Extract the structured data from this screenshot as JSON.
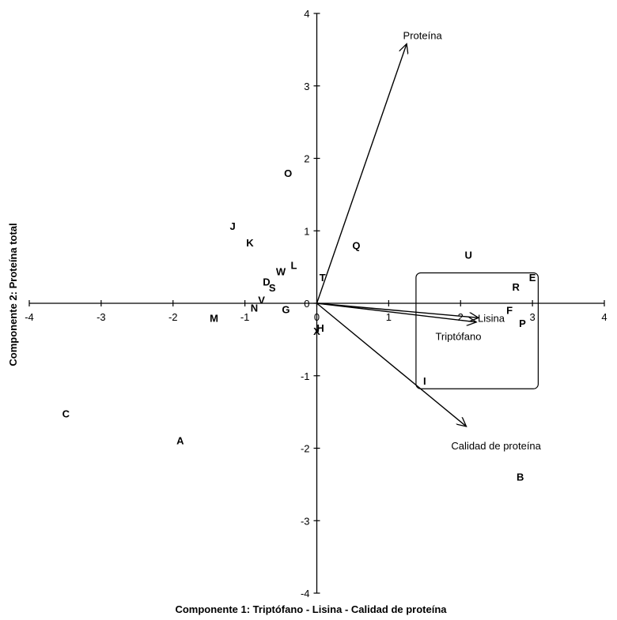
{
  "chart_data": {
    "type": "scatter",
    "subtype": "biplot",
    "xlabel": "Componente 1: Triptófano - Lisina - Calidad de proteína",
    "ylabel": "Componente 2: Proteína total",
    "xlim": [
      -4,
      4
    ],
    "ylim": [
      -4,
      4
    ],
    "x_ticks": [
      "-4",
      "-3",
      "-2",
      "-1",
      "0",
      "1",
      "2",
      "3",
      "4"
    ],
    "y_ticks": [
      "4",
      "3",
      "2",
      "1",
      "0",
      "-1",
      "-2",
      "-3",
      "-4"
    ],
    "grid": false,
    "points": [
      {
        "label": "O",
        "x": -0.4,
        "y": 1.8
      },
      {
        "label": "J",
        "x": -1.17,
        "y": 1.07
      },
      {
        "label": "K",
        "x": -0.93,
        "y": 0.84
      },
      {
        "label": "L",
        "x": -0.32,
        "y": 0.53
      },
      {
        "label": "W",
        "x": -0.5,
        "y": 0.44
      },
      {
        "label": "D",
        "x": -0.7,
        "y": 0.3
      },
      {
        "label": "S",
        "x": -0.62,
        "y": 0.22
      },
      {
        "label": "V",
        "x": -0.77,
        "y": 0.05
      },
      {
        "label": "N",
        "x": -0.87,
        "y": -0.06
      },
      {
        "label": "G",
        "x": -0.43,
        "y": -0.08
      },
      {
        "label": "M",
        "x": -1.43,
        "y": -0.2
      },
      {
        "label": "T",
        "x": 0.08,
        "y": 0.36
      },
      {
        "label": "Q",
        "x": 0.55,
        "y": 0.8
      },
      {
        "label": "H",
        "x": 0.05,
        "y": -0.34
      },
      {
        "label": "X",
        "x": 0.0,
        "y": -0.38
      },
      {
        "label": "U",
        "x": 2.11,
        "y": 0.67
      },
      {
        "label": "E",
        "x": 3.0,
        "y": 0.36
      },
      {
        "label": "R",
        "x": 2.77,
        "y": 0.23
      },
      {
        "label": "F",
        "x": 2.68,
        "y": -0.09
      },
      {
        "label": "P",
        "x": 2.86,
        "y": -0.27
      },
      {
        "label": "I",
        "x": 1.5,
        "y": -1.07
      },
      {
        "label": "C",
        "x": -3.49,
        "y": -1.52
      },
      {
        "label": "A",
        "x": -1.9,
        "y": -1.89
      },
      {
        "label": "B",
        "x": 2.83,
        "y": -2.39
      }
    ],
    "vectors": [
      {
        "name": "Proteína",
        "x": 1.25,
        "y": 3.58,
        "label_x": 1.2,
        "label_y": 3.7
      },
      {
        "name": "Lisina",
        "x": 2.25,
        "y": -0.2,
        "label_x": 2.24,
        "label_y": -0.2
      },
      {
        "name": "Triptófano",
        "x": 2.22,
        "y": -0.26,
        "label_x": 1.65,
        "label_y": -0.45
      },
      {
        "name": "Calidad de proteína",
        "x": 2.08,
        "y": -1.7,
        "label_x": 1.87,
        "label_y": -1.96
      }
    ],
    "box": {
      "x_min": 1.38,
      "x_max": 3.08,
      "y_min": -1.18,
      "y_max": 0.42
    }
  }
}
